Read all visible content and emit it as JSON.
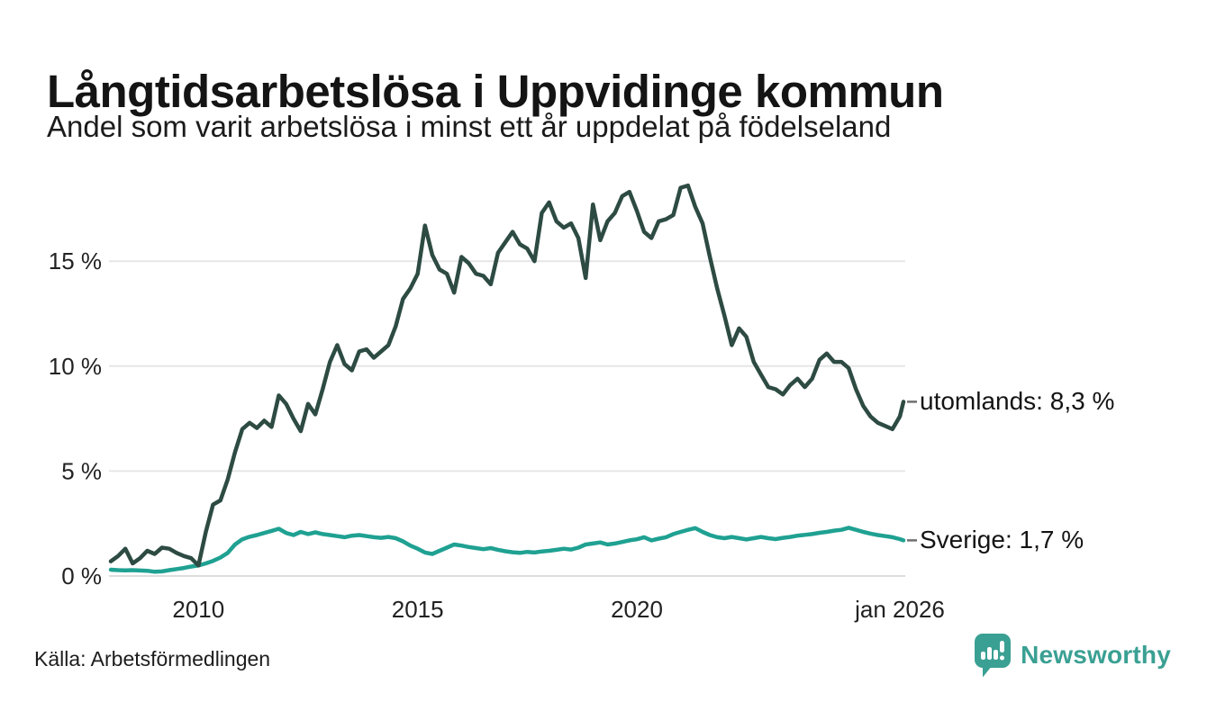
{
  "header": {
    "title": "Långtidsarbetslösa i Uppvidinge kommun",
    "subtitle": "Andel som varit arbetslösa i minst ett år uppdelat på födelseland"
  },
  "footer": {
    "source": "Källa: Arbetsförmedlingen",
    "brand": "Newsworthy"
  },
  "colors": {
    "utomlands_line": "#2d4b42",
    "sverige_line": "#1fa192",
    "brand_teal": "#3aa093",
    "grid": "#e6e6e6",
    "baseline": "#dcdcdc",
    "connector": "#6f6f6f",
    "axis_text": "#222222"
  },
  "chart_data": {
    "type": "line",
    "title": "Långtidsarbetslösa i Uppvidinge kommun",
    "subtitle": "Andel som varit arbetslösa i minst ett år uppdelat på födelseland",
    "unit": "%",
    "x_unit": "decimal_year",
    "grid": "horizontal",
    "xlim": [
      2008.0,
      2026.083
    ],
    "ylim": [
      0,
      19
    ],
    "y_ticks": {
      "values": [
        0,
        5,
        10,
        15
      ],
      "labels": [
        "0 %",
        "5 %",
        "10 %",
        "15 %"
      ]
    },
    "x_ticks": {
      "values": [
        2010,
        2015,
        2020,
        2026.0
      ],
      "labels": [
        "2010",
        "2015",
        "2020",
        "jan 2026"
      ]
    },
    "x": [
      2008.0,
      2008.167,
      2008.333,
      2008.5,
      2008.667,
      2008.833,
      2009.0,
      2009.167,
      2009.333,
      2009.5,
      2009.667,
      2009.833,
      2010.0,
      2010.167,
      2010.333,
      2010.5,
      2010.667,
      2010.833,
      2011.0,
      2011.167,
      2011.333,
      2011.5,
      2011.667,
      2011.833,
      2012.0,
      2012.167,
      2012.333,
      2012.5,
      2012.667,
      2012.833,
      2013.0,
      2013.167,
      2013.333,
      2013.5,
      2013.667,
      2013.833,
      2014.0,
      2014.167,
      2014.333,
      2014.5,
      2014.667,
      2014.833,
      2015.0,
      2015.167,
      2015.333,
      2015.5,
      2015.667,
      2015.833,
      2016.0,
      2016.167,
      2016.333,
      2016.5,
      2016.667,
      2016.833,
      2017.0,
      2017.167,
      2017.333,
      2017.5,
      2017.667,
      2017.833,
      2018.0,
      2018.167,
      2018.333,
      2018.5,
      2018.667,
      2018.833,
      2019.0,
      2019.167,
      2019.333,
      2019.5,
      2019.667,
      2019.833,
      2020.0,
      2020.167,
      2020.333,
      2020.5,
      2020.667,
      2020.833,
      2021.0,
      2021.167,
      2021.333,
      2021.5,
      2021.667,
      2021.833,
      2022.0,
      2022.167,
      2022.333,
      2022.5,
      2022.667,
      2022.833,
      2023.0,
      2023.167,
      2023.333,
      2023.5,
      2023.667,
      2023.833,
      2024.0,
      2024.167,
      2024.333,
      2024.5,
      2024.667,
      2024.833,
      2025.0,
      2025.167,
      2025.333,
      2025.5,
      2025.667,
      2025.833,
      2026.0,
      2026.083
    ],
    "series": [
      {
        "name": "utomlands",
        "end_label": "utomlands: 8,3 %",
        "last_value": "8,3 %",
        "color": "#2d4b42",
        "values": [
          0.7,
          0.95,
          1.3,
          0.6,
          0.85,
          1.2,
          1.05,
          1.35,
          1.3,
          1.1,
          0.95,
          0.85,
          0.5,
          2.1,
          3.4,
          3.6,
          4.6,
          5.9,
          7.0,
          7.3,
          7.05,
          7.4,
          7.1,
          8.6,
          8.2,
          7.5,
          6.9,
          8.2,
          7.7,
          8.9,
          10.2,
          11.0,
          10.1,
          9.8,
          10.7,
          10.8,
          10.4,
          10.7,
          11.0,
          11.9,
          13.2,
          13.7,
          14.4,
          16.7,
          15.3,
          14.6,
          14.4,
          13.5,
          15.2,
          14.9,
          14.4,
          14.3,
          13.9,
          15.4,
          15.9,
          16.4,
          15.8,
          15.6,
          15.0,
          17.3,
          17.8,
          16.9,
          16.6,
          16.8,
          16.1,
          14.2,
          17.7,
          16.0,
          16.9,
          17.3,
          18.1,
          18.3,
          17.4,
          16.4,
          16.1,
          16.9,
          17.0,
          17.2,
          18.5,
          18.6,
          17.6,
          16.8,
          15.2,
          13.7,
          12.4,
          11.0,
          11.8,
          11.4,
          10.2,
          9.6,
          9.0,
          8.9,
          8.65,
          9.1,
          9.4,
          9.0,
          9.4,
          10.3,
          10.6,
          10.2,
          10.2,
          9.9,
          8.9,
          8.1,
          7.6,
          7.3,
          7.15,
          7.0,
          7.6,
          8.3
        ]
      },
      {
        "name": "Sverige",
        "end_label": "Sverige: 1,7 %",
        "last_value": "1,7 %",
        "color": "#1fa192",
        "values": [
          0.3,
          0.28,
          0.27,
          0.28,
          0.26,
          0.25,
          0.2,
          0.22,
          0.28,
          0.33,
          0.38,
          0.45,
          0.5,
          0.6,
          0.72,
          0.88,
          1.1,
          1.5,
          1.75,
          1.87,
          1.95,
          2.05,
          2.15,
          2.25,
          2.05,
          1.95,
          2.1,
          2.0,
          2.08,
          2.0,
          1.95,
          1.9,
          1.85,
          1.92,
          1.95,
          1.9,
          1.85,
          1.82,
          1.86,
          1.8,
          1.65,
          1.45,
          1.3,
          1.12,
          1.05,
          1.2,
          1.35,
          1.5,
          1.45,
          1.38,
          1.33,
          1.28,
          1.33,
          1.25,
          1.18,
          1.13,
          1.1,
          1.15,
          1.12,
          1.17,
          1.2,
          1.25,
          1.3,
          1.26,
          1.35,
          1.5,
          1.55,
          1.6,
          1.5,
          1.55,
          1.62,
          1.7,
          1.75,
          1.85,
          1.7,
          1.78,
          1.85,
          2.0,
          2.1,
          2.2,
          2.28,
          2.1,
          1.95,
          1.85,
          1.8,
          1.86,
          1.8,
          1.74,
          1.8,
          1.86,
          1.8,
          1.76,
          1.82,
          1.86,
          1.92,
          1.96,
          2.0,
          2.06,
          2.1,
          2.16,
          2.2,
          2.3,
          2.2,
          2.1,
          2.02,
          1.95,
          1.9,
          1.85,
          1.76,
          1.7
        ]
      }
    ]
  }
}
